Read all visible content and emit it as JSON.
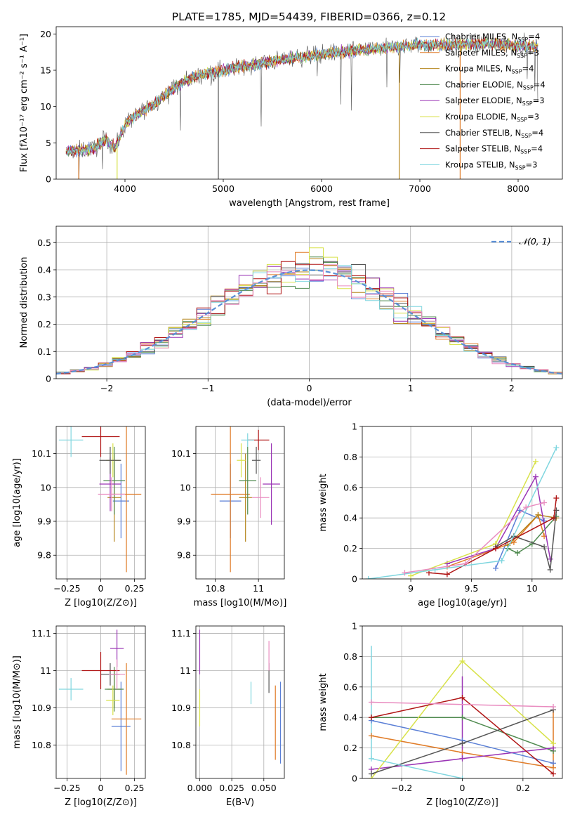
{
  "figure": {
    "title": "PLATE=1785, MJD=54439, FIBERID=0366, z=0.12"
  },
  "colors": [
    "#5a7fd6",
    "#e07c28",
    "#b5861d",
    "#4f8a4f",
    "#9a34b5",
    "#d8e24a",
    "#555555",
    "#b01414",
    "#7fd6df"
  ],
  "chart_data": [
    {
      "id": "spectrum",
      "type": "line",
      "xlabel": "wavelength [Angstrom, rest frame]",
      "ylabel": "Flux [fλ10⁻¹⁷ erg cm⁻² s⁻¹ A⁻¹]",
      "xlim": [
        3300,
        8450
      ],
      "ylim": [
        0,
        21
      ],
      "xticks": [
        4000,
        5000,
        6000,
        7000,
        8000
      ],
      "yticks": [
        0,
        5,
        10,
        15,
        20
      ],
      "grid": false,
      "legend_position": "right",
      "legend": [
        {
          "label": "Chabrier MILES, N",
          "sub": "SSP",
          "tail": "=4",
          "color": "#5a7fd6"
        },
        {
          "label": "Salpeter MILES, N",
          "sub": "SSP",
          "tail": "=3",
          "color": "#e07c28"
        },
        {
          "label": "Kroupa MILES, N",
          "sub": "SSP",
          "tail": "=4",
          "color": "#b5861d"
        },
        {
          "label": "Chabrier ELODIE, N",
          "sub": "SSP",
          "tail": "=4",
          "color": "#4f8a4f"
        },
        {
          "label": "Salpeter ELODIE, N",
          "sub": "SSP",
          "tail": "=3",
          "color": "#9a34b5"
        },
        {
          "label": "Kroupa ELODIE, N",
          "sub": "SSP",
          "tail": "=3",
          "color": "#d8e24a"
        },
        {
          "label": "Chabrier STELIB, N",
          "sub": "SSP",
          "tail": "=4",
          "color": "#555555"
        },
        {
          "label": "Salpeter STELIB, N",
          "sub": "SSP",
          "tail": "=4",
          "color": "#b01414"
        },
        {
          "label": "Kroupa STELIB, N",
          "sub": "SSP",
          "tail": "=3",
          "color": "#7fd6df"
        }
      ],
      "envelope": {
        "x": [
          3400,
          3550,
          3700,
          3800,
          3900,
          4000,
          4100,
          4200,
          4300,
          4400,
          4500,
          4600,
          4800,
          5000,
          5200,
          5400,
          5600,
          5800,
          6000,
          6200,
          6400,
          6600,
          6800,
          7000,
          7200,
          7400,
          7600,
          7800,
          8000,
          8200
        ],
        "y": [
          3.8,
          4.0,
          4.3,
          5.5,
          4.2,
          7.5,
          8.8,
          9.5,
          10.5,
          11.5,
          12.5,
          13.5,
          14.5,
          15.0,
          15.5,
          16.0,
          16.5,
          16.8,
          17.2,
          17.5,
          17.8,
          18.0,
          18.3,
          18.5,
          18.5,
          18.5,
          18.7,
          18.6,
          18.4,
          18.2
        ]
      }
    },
    {
      "id": "residuals",
      "type": "line",
      "xlabel": "(data-model)/error",
      "ylabel": "Normed distribution",
      "xlim": [
        -2.5,
        2.5
      ],
      "ylim": [
        0,
        0.56
      ],
      "xticks": [
        -2,
        -1,
        0,
        1,
        2
      ],
      "yticks": [
        0.0,
        0.1,
        0.2,
        0.3,
        0.4,
        0.5
      ],
      "grid": true,
      "legend": [
        {
          "label": "𝒩(0, 1)",
          "color": "#5a8fd6"
        }
      ],
      "legend_position": "top-right"
    },
    {
      "id": "age-vs-Z",
      "type": "scatter",
      "xlabel": "Z [log10(Z/Z⊙)]",
      "ylabel": "age  [log10(age/yr)]",
      "xlim": [
        -0.33,
        0.33
      ],
      "ylim": [
        9.73,
        10.18
      ],
      "xticks": [
        -0.25,
        0.0,
        0.25
      ],
      "yticks": [
        9.8,
        9.9,
        10.0,
        10.1
      ],
      "grid": true,
      "points": [
        {
          "x": 0.15,
          "y": 9.96,
          "xerr": 0.06,
          "yerr": 0.11,
          "color": "#5a7fd6"
        },
        {
          "x": 0.19,
          "y": 9.98,
          "xerr": 0.11,
          "yerr": 0.23,
          "color": "#e07c28"
        },
        {
          "x": 0.1,
          "y": 9.97,
          "xerr": 0.05,
          "yerr": 0.13,
          "color": "#b5861d"
        },
        {
          "x": 0.1,
          "y": 10.02,
          "xerr": 0.08,
          "yerr": 0.1,
          "color": "#4f8a4f"
        },
        {
          "x": 0.07,
          "y": 10.01,
          "xerr": 0.08,
          "yerr": 0.08,
          "color": "#9a34b5"
        },
        {
          "x": 0.09,
          "y": 10.08,
          "xerr": 0.05,
          "yerr": 0.05,
          "color": "#d8e24a"
        },
        {
          "x": 0.07,
          "y": 10.08,
          "xerr": 0.08,
          "yerr": 0.04,
          "color": "#555555"
        },
        {
          "x": 0.0,
          "y": 10.15,
          "xerr": 0.14,
          "yerr": 0.06,
          "color": "#b01414"
        },
        {
          "x": -0.22,
          "y": 10.14,
          "xerr": 0.09,
          "yerr": 0.05,
          "color": "#7fd6df"
        },
        {
          "x": 0.08,
          "y": 9.98,
          "xerr": 0.1,
          "yerr": 0.05,
          "color": "#e98cc0"
        }
      ]
    },
    {
      "id": "age-vs-mass",
      "type": "scatter",
      "xlabel": "mass [log10(M/M⊙)]",
      "ylabel": "",
      "xlim": [
        10.71,
        11.12
      ],
      "ylim": [
        9.73,
        10.18
      ],
      "xticks": [
        10.8,
        11.0
      ],
      "yticks": [
        9.8,
        9.9,
        10.0,
        10.1
      ],
      "grid": true,
      "points": [
        {
          "x": 10.87,
          "y": 9.96,
          "xerr": 0.05,
          "yerr": 0.11,
          "color": "#5a7fd6"
        },
        {
          "x": 10.87,
          "y": 9.98,
          "xerr": 0.09,
          "yerr": 0.23,
          "color": "#e07c28"
        },
        {
          "x": 10.94,
          "y": 9.97,
          "xerr": 0.03,
          "yerr": 0.13,
          "color": "#b5861d"
        },
        {
          "x": 10.95,
          "y": 10.02,
          "xerr": 0.04,
          "yerr": 0.1,
          "color": "#4f8a4f"
        },
        {
          "x": 11.06,
          "y": 10.01,
          "xerr": 0.04,
          "yerr": 0.12,
          "color": "#9a34b5"
        },
        {
          "x": 10.92,
          "y": 10.08,
          "xerr": 0.02,
          "yerr": 0.05,
          "color": "#d8e24a"
        },
        {
          "x": 10.99,
          "y": 10.08,
          "xerr": 0.02,
          "yerr": 0.04,
          "color": "#555555"
        },
        {
          "x": 11.0,
          "y": 10.14,
          "xerr": 0.05,
          "yerr": 0.03,
          "color": "#b01414"
        },
        {
          "x": 10.95,
          "y": 10.14,
          "xerr": 0.03,
          "yerr": 0.02,
          "color": "#7fd6df"
        },
        {
          "x": 11.01,
          "y": 9.97,
          "xerr": 0.04,
          "yerr": 0.06,
          "color": "#e98cc0"
        }
      ]
    },
    {
      "id": "massweight-vs-age",
      "type": "line",
      "xlabel": "age  [log10(age/yr)]",
      "ylabel": "mass weight",
      "xlim": [
        8.6,
        10.25
      ],
      "ylim": [
        0,
        1.0
      ],
      "xticks": [
        9.0,
        9.5,
        10.0
      ],
      "yticks": [
        0.0,
        0.2,
        0.4,
        0.6,
        0.8,
        1.0
      ],
      "grid": true,
      "series": [
        {
          "color": "#5a7fd6",
          "x": [
            9.7,
            9.9,
            10.1
          ],
          "y": [
            0.07,
            0.45,
            0.38
          ]
        },
        {
          "color": "#e07c28",
          "x": [
            9.3,
            9.85,
            10.05,
            10.1
          ],
          "y": [
            0.08,
            0.24,
            0.42,
            0.28
          ]
        },
        {
          "color": "#b5861d",
          "x": [
            9.8,
            10.05,
            10.2
          ],
          "y": [
            0.22,
            0.42,
            0.4
          ]
        },
        {
          "color": "#4f8a4f",
          "x": [
            9.8,
            9.88,
            10.0,
            10.2
          ],
          "y": [
            0.2,
            0.17,
            0.23,
            0.41
          ]
        },
        {
          "color": "#9a34b5",
          "x": [
            9.3,
            9.7,
            10.03,
            10.15
          ],
          "y": [
            0.1,
            0.2,
            0.67,
            0.13
          ]
        },
        {
          "color": "#d8e24a",
          "x": [
            9.0,
            9.7,
            10.03
          ],
          "y": [
            0.02,
            0.23,
            0.77
          ]
        },
        {
          "color": "#555555",
          "x": [
            9.7,
            9.85,
            10.1,
            10.15,
            10.2
          ],
          "y": [
            0.21,
            0.28,
            0.21,
            0.06,
            0.45
          ]
        },
        {
          "color": "#b01414",
          "x": [
            9.15,
            9.3,
            9.7,
            10.18,
            10.2
          ],
          "y": [
            0.04,
            0.03,
            0.2,
            0.4,
            0.53
          ]
        },
        {
          "color": "#7fd6df",
          "x": [
            8.65,
            9.2,
            9.75,
            10.2
          ],
          "y": [
            0.0,
            0.06,
            0.12,
            0.86
          ]
        },
        {
          "color": "#e98cc0",
          "x": [
            8.95,
            9.45,
            9.95,
            10.1
          ],
          "y": [
            0.04,
            0.1,
            0.47,
            0.5
          ]
        }
      ]
    },
    {
      "id": "mass-vs-Z",
      "type": "scatter",
      "xlabel": "Z [log10(Z/Z⊙)]",
      "ylabel": "mass [log10(M/M⊙)]",
      "xlim": [
        -0.33,
        0.33
      ],
      "ylim": [
        10.71,
        11.12
      ],
      "xticks": [
        -0.25,
        0.0,
        0.25
      ],
      "yticks": [
        10.8,
        10.9,
        11.0,
        11.1
      ],
      "grid": true,
      "points": [
        {
          "x": 0.15,
          "y": 10.85,
          "xerr": 0.07,
          "yerr": 0.12,
          "color": "#5a7fd6"
        },
        {
          "x": 0.19,
          "y": 10.87,
          "xerr": 0.11,
          "yerr": 0.15,
          "color": "#e07c28"
        },
        {
          "x": 0.1,
          "y": 10.95,
          "xerr": 0.05,
          "yerr": 0.05,
          "color": "#b5861d"
        },
        {
          "x": 0.1,
          "y": 10.95,
          "xerr": 0.07,
          "yerr": 0.06,
          "color": "#4f8a4f"
        },
        {
          "x": 0.12,
          "y": 11.06,
          "xerr": 0.05,
          "yerr": 0.05,
          "color": "#9a34b5"
        },
        {
          "x": 0.09,
          "y": 10.92,
          "xerr": 0.05,
          "yerr": 0.04,
          "color": "#d8e24a"
        },
        {
          "x": 0.07,
          "y": 10.99,
          "xerr": 0.07,
          "yerr": 0.03,
          "color": "#555555"
        },
        {
          "x": 0.0,
          "y": 11.0,
          "xerr": 0.14,
          "yerr": 0.05,
          "color": "#b01414"
        },
        {
          "x": -0.22,
          "y": 10.95,
          "xerr": 0.09,
          "yerr": 0.03,
          "color": "#7fd6df"
        },
        {
          "x": 0.12,
          "y": 10.99,
          "xerr": 0.06,
          "yerr": 0.04,
          "color": "#e98cc0"
        }
      ]
    },
    {
      "id": "mass-vs-ebv",
      "type": "scatter",
      "xlabel": "E(B-V)",
      "ylabel": "",
      "xlim": [
        -0.003,
        0.066
      ],
      "ylim": [
        10.71,
        11.12
      ],
      "xticks": [
        0.0,
        0.025,
        0.05
      ],
      "xticklabels": [
        "0.000",
        "0.025",
        "0.050"
      ],
      "yticks": [
        10.8,
        10.9,
        11.0,
        11.1
      ],
      "grid": true,
      "points": [
        {
          "x": 0.063,
          "y": 10.86,
          "yerr": 0.11,
          "color": "#5a7fd6"
        },
        {
          "x": 0.059,
          "y": 10.86,
          "yerr": 0.1,
          "color": "#e07c28"
        },
        {
          "x": 0.054,
          "y": 10.98,
          "yerr": 0.04,
          "color": "#555555"
        },
        {
          "x": 0.054,
          "y": 11.04,
          "yerr": 0.04,
          "color": "#e98cc0"
        },
        {
          "x": 0.04,
          "y": 10.94,
          "yerr": 0.03,
          "color": "#7fd6df"
        },
        {
          "x": 0.0,
          "y": 11.05,
          "yerr": 0.06,
          "color": "#9a34b5"
        },
        {
          "x": 0.0,
          "y": 10.9,
          "yerr": 0.05,
          "color": "#d8e24a"
        }
      ]
    },
    {
      "id": "massweight-vs-Z",
      "type": "line",
      "xlabel": "Z [log10(Z/Z⊙)]",
      "ylabel": "mass weight",
      "xlim": [
        -0.33,
        0.33
      ],
      "ylim": [
        0,
        1.0
      ],
      "xticks": [
        -0.2,
        0.0,
        0.2
      ],
      "yticks": [
        0.0,
        0.2,
        0.4,
        0.6,
        0.8,
        1.0
      ],
      "grid": true,
      "series": [
        {
          "color": "#5a7fd6",
          "x": [
            -0.3,
            0.0,
            0.3
          ],
          "y": [
            0.38,
            0.25,
            0.1
          ]
        },
        {
          "color": "#e07c28",
          "x": [
            -0.3,
            0.0,
            0.3
          ],
          "y": [
            0.28,
            0.17,
            0.07
          ]
        },
        {
          "color": "#4f8a4f",
          "x": [
            -0.3,
            0.0,
            0.3
          ],
          "y": [
            0.4,
            0.4,
            0.18
          ]
        },
        {
          "color": "#9a34b5",
          "x": [
            -0.3,
            0.0,
            0.3
          ],
          "y": [
            0.06,
            0.13,
            0.2
          ]
        },
        {
          "color": "#d8e24a",
          "x": [
            -0.3,
            0.0,
            0.3
          ],
          "y": [
            0.0,
            0.77,
            0.23
          ]
        },
        {
          "color": "#555555",
          "x": [
            -0.3,
            0.0,
            0.3
          ],
          "y": [
            0.03,
            0.23,
            0.45
          ]
        },
        {
          "color": "#b01414",
          "x": [
            -0.3,
            0.0,
            0.3
          ],
          "y": [
            0.4,
            0.53,
            0.03
          ]
        },
        {
          "color": "#7fd6df",
          "x": [
            -0.3,
            0.0
          ],
          "y": [
            0.13,
            0.0
          ]
        },
        {
          "color": "#e98cc0",
          "x": [
            -0.3,
            0.3
          ],
          "y": [
            0.5,
            0.47
          ]
        }
      ],
      "vertical_ranges": [
        {
          "color": "#7fd6df",
          "x": -0.3,
          "y": [
            0.13,
            0.87
          ]
        },
        {
          "color": "#9a34b5",
          "x": 0.0,
          "y": [
            0.13,
            0.67
          ]
        },
        {
          "color": "#e07c28",
          "x": 0.3,
          "y": [
            0.07,
            0.45
          ]
        }
      ]
    }
  ]
}
